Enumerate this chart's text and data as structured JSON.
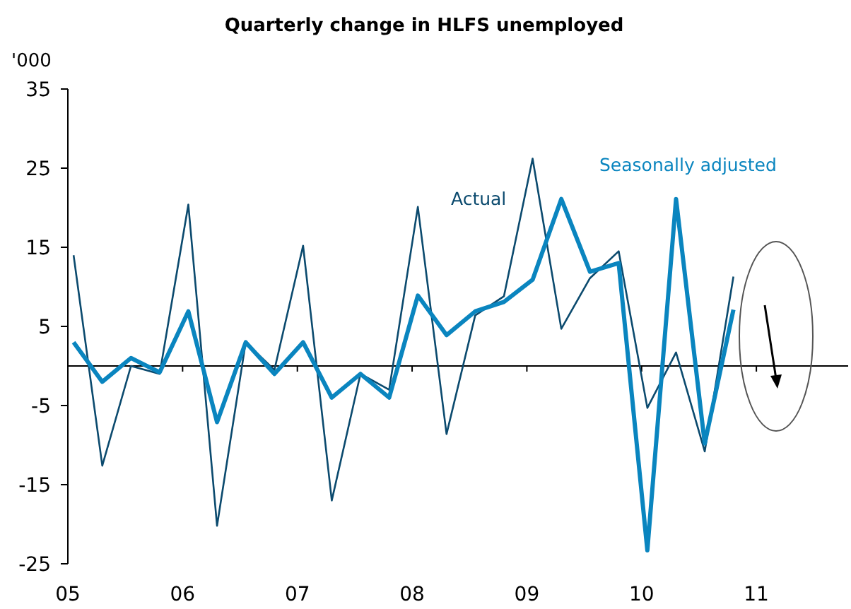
{
  "chart_data": {
    "type": "line",
    "title": "Quarterly change in HLFS unemployed",
    "ylabel": "'000",
    "x": [
      2005.05,
      2005.3,
      2005.55,
      2005.8,
      2006.05,
      2006.3,
      2006.55,
      2006.8,
      2007.05,
      2007.3,
      2007.55,
      2007.8,
      2008.05,
      2008.3,
      2008.55,
      2008.8,
      2009.05,
      2009.3,
      2009.55,
      2009.8,
      2010.05,
      2010.3,
      2010.55,
      2010.8
    ],
    "series": [
      {
        "name": "Actual",
        "color": "#0b4a6e",
        "values": [
          14,
          -12.6,
          0,
          -1,
          20.4,
          -20.2,
          3,
          -0.5,
          15.2,
          -17,
          -1,
          -3,
          20.1,
          -8.6,
          6.4,
          8.8,
          26.2,
          4.7,
          11.1,
          14.5,
          -5.3,
          1.7,
          -10.8,
          11.3
        ]
      },
      {
        "name": "Seasonally adjusted",
        "color": "#0a85bf",
        "values": [
          3,
          -2,
          1,
          -0.8,
          6.9,
          -7.1,
          3,
          -1,
          3,
          -4,
          -1,
          -4,
          8.9,
          3.9,
          6.9,
          8.1,
          10.9,
          21.1,
          11.9,
          13,
          -23.3,
          21.1,
          -9.8,
          7.1
        ]
      }
    ],
    "xlim": [
      2005,
      2011.8
    ],
    "xticks": [
      {
        "value": 2005,
        "label": "05"
      },
      {
        "value": 2006,
        "label": "06"
      },
      {
        "value": 2007,
        "label": "07"
      },
      {
        "value": 2008,
        "label": "08"
      },
      {
        "value": 2009,
        "label": "09"
      },
      {
        "value": 2010,
        "label": "10"
      },
      {
        "value": 2011,
        "label": "11"
      }
    ],
    "ylim": [
      -25,
      35
    ],
    "yticks": [
      -25,
      -15,
      -5,
      5,
      15,
      25,
      35
    ],
    "grid": false,
    "marker": "none",
    "line_style": "solid"
  }
}
